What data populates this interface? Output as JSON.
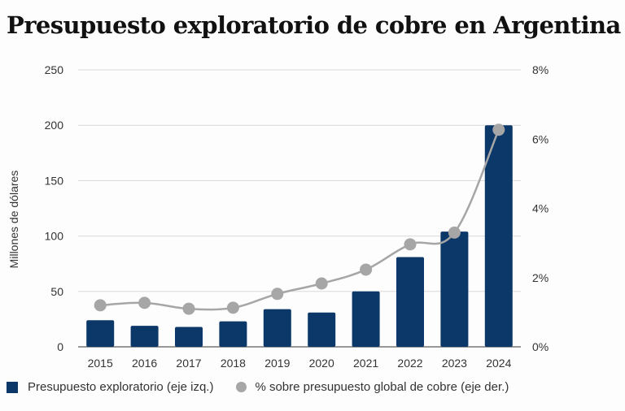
{
  "chart_data": {
    "type": "bar+line",
    "title": "Presupuesto exploratorio de cobre en Argentina",
    "xlabel": "",
    "ylabel": "Millones de dólares",
    "y2label": "",
    "categories": [
      "2015",
      "2016",
      "2017",
      "2018",
      "2019",
      "2020",
      "2021",
      "2022",
      "2023",
      "2024"
    ],
    "series": [
      {
        "name": "Presupuesto exploratorio (eje izq.)",
        "type": "bar",
        "axis": "left",
        "color": "#0b3868",
        "values": [
          24,
          19,
          18,
          23,
          34,
          31,
          50,
          81,
          104,
          200
        ]
      },
      {
        "name": "% sobre presupuesto global de cobre (eje der.)",
        "type": "line",
        "axis": "right",
        "color": "#a6a6a6",
        "values": [
          1.2,
          1.27,
          1.1,
          1.13,
          1.53,
          1.83,
          2.23,
          2.96,
          3.3,
          6.27
        ]
      }
    ],
    "ylim": [
      0,
      250
    ],
    "yticks": [
      "0",
      "50",
      "100",
      "150",
      "200",
      "250"
    ],
    "y2lim": [
      0,
      8
    ],
    "y2ticks": [
      "0%",
      "2%",
      "4%",
      "6%",
      "8%"
    ],
    "grid": true,
    "legend_position": "bottom-left"
  }
}
